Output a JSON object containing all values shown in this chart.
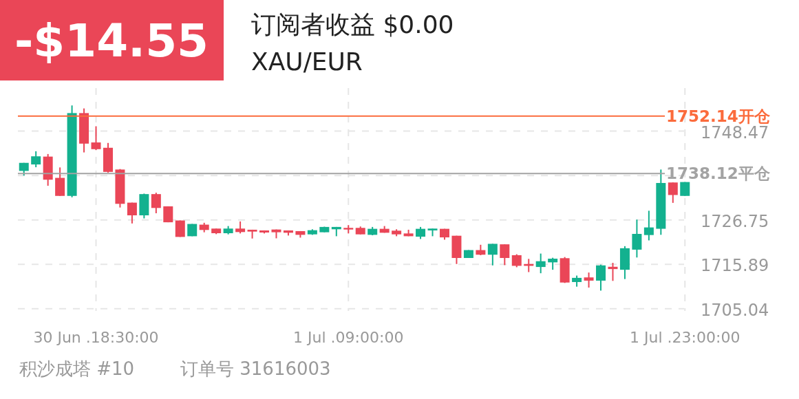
{
  "chart_data": {
    "type": "candlestick",
    "title": "订阅者收益 $0.00",
    "subtitle": "XAU/EUR",
    "annotations": [
      "-$14.55",
      "积沙成塔 #10",
      "订单号 31616003"
    ],
    "categories": [
      null,
      null,
      null,
      null,
      null,
      null,
      "30 Jun .18:30:00",
      null,
      null,
      null,
      null,
      null,
      null,
      null,
      null,
      null,
      null,
      null,
      null,
      null,
      null,
      null,
      null,
      null,
      null,
      null,
      null,
      "1 Jul .09:00:00",
      null,
      null,
      null,
      null,
      null,
      null,
      null,
      null,
      null,
      null,
      null,
      null,
      null,
      null,
      null,
      null,
      null,
      null,
      null,
      null,
      null,
      null,
      null,
      null,
      null,
      null,
      null,
      "1 Jul .23:00:00"
    ],
    "ohlc": [
      [
        1738.74,
        1740.71,
        1737.6,
        1740.71
      ],
      [
        1740.32,
        1743.55,
        1739.64,
        1742.31
      ],
      [
        1742.24,
        1742.87,
        1735.11,
        1736.59
      ],
      [
        1737.04,
        1739.59,
        1732.63,
        1732.63
      ],
      [
        1732.63,
        1754.75,
        1732.29,
        1752.88
      ],
      [
        1752.88,
        1754.02,
        1743.26,
        1745.41
      ],
      [
        1745.7,
        1749.66,
        1743.83,
        1744.06
      ],
      [
        1744.4,
        1745.58,
        1738.33,
        1738.5
      ],
      [
        1739.08,
        1739.2,
        1729.79,
        1730.69
      ],
      [
        1730.98,
        1730.98,
        1725.89,
        1727.88
      ],
      [
        1727.88,
        1733.19,
        1727.13,
        1733.07
      ],
      [
        1733.07,
        1733.41,
        1728.39,
        1729.68
      ],
      [
        1730.08,
        1730.08,
        1726.18,
        1726.18
      ],
      [
        1726.62,
        1726.62,
        1722.6,
        1722.6
      ],
      [
        1722.77,
        1725.77,
        1722.77,
        1725.77
      ],
      [
        1725.6,
        1726.06,
        1723.73,
        1724.3
      ],
      [
        1724.64,
        1724.64,
        1723.28,
        1723.51
      ],
      [
        1723.51,
        1725.26,
        1723.23,
        1724.64
      ],
      [
        1724.64,
        1726.39,
        1723.45,
        1723.79
      ],
      [
        1724.36,
        1724.36,
        1722.21,
        1723.9
      ],
      [
        1724.19,
        1724.19,
        1723.45,
        1723.68
      ],
      [
        1724.41,
        1724.41,
        1722.26,
        1723.74
      ],
      [
        1724.19,
        1724.19,
        1722.94,
        1723.62
      ],
      [
        1724.02,
        1724.02,
        1722.43,
        1723.11
      ],
      [
        1723.23,
        1724.47,
        1723.11,
        1724.24
      ],
      [
        1723.74,
        1725.1,
        1723.74,
        1725.04
      ],
      [
        1724.47,
        1725.04,
        1722.77,
        1725.04
      ],
      [
        1724.81,
        1725.49,
        1723.45,
        1724.41
      ],
      [
        1724.81,
        1725.15,
        1723.23,
        1723.23
      ],
      [
        1723.11,
        1725.04,
        1723.0,
        1724.58
      ],
      [
        1724.58,
        1725.26,
        1723.62,
        1723.62
      ],
      [
        1724.13,
        1724.47,
        1722.77,
        1723.23
      ],
      [
        1723.45,
        1724.36,
        1722.77,
        1722.77
      ],
      [
        1722.66,
        1725.04,
        1722.09,
        1724.58
      ],
      [
        1724.19,
        1724.64,
        1722.77,
        1724.64
      ],
      [
        1724.58,
        1724.58,
        1721.92,
        1722.49
      ],
      [
        1722.89,
        1722.89,
        1715.98,
        1717.45
      ],
      [
        1717.45,
        1719.38,
        1717.45,
        1719.38
      ],
      [
        1719.38,
        1720.68,
        1718.13,
        1718.25
      ],
      [
        1718.25,
        1720.91,
        1715.64,
        1720.91
      ],
      [
        1720.79,
        1720.79,
        1715.7,
        1717.45
      ],
      [
        1718.13,
        1718.36,
        1715.19,
        1715.53
      ],
      [
        1715.98,
        1717.23,
        1714.0,
        1715.53
      ],
      [
        1715.25,
        1718.53,
        1713.72,
        1716.66
      ],
      [
        1716.38,
        1717.51,
        1714.57,
        1717.28
      ],
      [
        1717.4,
        1717.68,
        1711.34,
        1711.45
      ],
      [
        1711.57,
        1713.15,
        1710.44,
        1712.59
      ],
      [
        1712.7,
        1713.89,
        1710.21,
        1711.91
      ],
      [
        1711.91,
        1715.81,
        1709.47,
        1715.64
      ],
      [
        1715.3,
        1716.26,
        1711.85,
        1714.74
      ],
      [
        1714.57,
        1720.34,
        1712.3,
        1719.83
      ],
      [
        1719.49,
        1726.85,
        1717.57,
        1723.34
      ],
      [
        1723.06,
        1729.0,
        1721.75,
        1724.92
      ],
      [
        1724.59,
        1739.08,
        1723.12,
        1735.79
      ],
      [
        1735.91,
        1735.91,
        1730.93,
        1732.85
      ],
      [
        1732.63,
        1736.02,
        1732.63,
        1736.02
      ]
    ],
    "colors": [
      "#13b18f",
      "#13b18f",
      "#ea4657",
      "#ea4657",
      "#13b18f",
      "#ea4657",
      "#ea4657",
      "#ea4657",
      "#ea4657",
      "#ea4657",
      "#13b18f",
      "#ea4657",
      "#ea4657",
      "#ea4657",
      "#13b18f",
      "#ea4657",
      "#ea4657",
      "#13b18f",
      "#ea4657",
      "#ea4657",
      "#ea4657",
      "#ea4657",
      "#ea4657",
      "#ea4657",
      "#13b18f",
      "#13b18f",
      "#13b18f",
      "#ea4657",
      "#ea4657",
      "#13b18f",
      "#ea4657",
      "#ea4657",
      "#ea4657",
      "#13b18f",
      "#13b18f",
      "#ea4657",
      "#ea4657",
      "#13b18f",
      "#ea4657",
      "#13b18f",
      "#ea4657",
      "#ea4657",
      "#ea4657",
      "#13b18f",
      "#13b18f",
      "#ea4657",
      "#13b18f",
      "#ea4657",
      "#13b18f",
      "#ea4657",
      "#13b18f",
      "#13b18f",
      "#13b18f",
      "#13b18f",
      "#ea4657",
      "#13b18f"
    ],
    "ylim": [
      1704.5,
      1759
    ],
    "yticks": [
      1705.04,
      1715.89,
      1726.75,
      {
        "value": 1737.61,
        "label": null
      },
      1748.47
    ],
    "grid": true,
    "ref_lines": [
      {
        "axis": "y",
        "value": 1752.14,
        "label": "1752.14开仓",
        "color": "#fb6b3c"
      },
      {
        "axis": "y",
        "value": 1738.12,
        "label": "1738.12平仓",
        "color": "#a3a3a3"
      }
    ]
  }
}
